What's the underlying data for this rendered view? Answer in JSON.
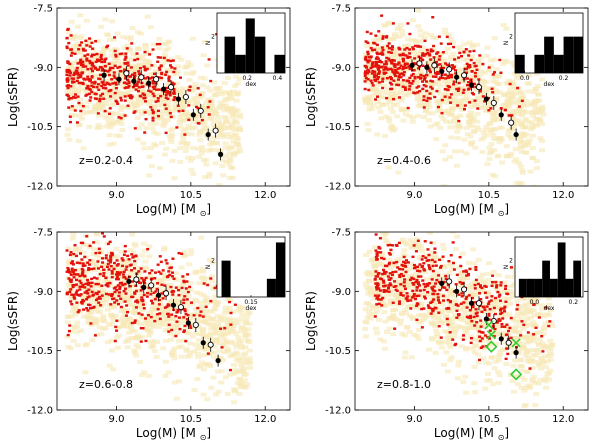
{
  "figure": {
    "xlabel": "Log(M) [M",
    "xlabel_sub": "⊙",
    "xlabel_close": "]",
    "ylabel": "Log(sSFR)",
    "inset_xlabel": "dex",
    "inset_ylabel": "N"
  },
  "colors": {
    "background_cloud": "#f7e7b4",
    "red_points": "#e3120b",
    "filled_markers": "#000000",
    "open_markers": "#000000",
    "green_markers": "#33cc33",
    "inset_bars": "#000000"
  },
  "chart_data": [
    {
      "type": "scatter",
      "panel": "top-left",
      "z_label": "z=0.2-0.4",
      "xlim": [
        7.8,
        12.5
      ],
      "ylim": [
        -12.0,
        -7.5
      ],
      "xticks": [
        "9.0",
        "10.5",
        "12.0"
      ],
      "yticks": [
        "-7.5",
        "-9.0",
        "-10.5",
        "-12.0"
      ],
      "red_cloud": {
        "x_range": [
          8.0,
          10.2
        ],
        "center": -9.2,
        "spread": 0.45,
        "tilt": -0.25
      },
      "bg_cloud": {
        "x_range": [
          8.0,
          11.5
        ],
        "center": -9.3,
        "spread": 0.7,
        "tilt": -0.55
      },
      "filled_points": [
        [
          8.75,
          -9.2
        ],
        [
          9.05,
          -9.3
        ],
        [
          9.35,
          -9.35
        ],
        [
          9.65,
          -9.4
        ],
        [
          9.95,
          -9.55
        ],
        [
          10.25,
          -9.8
        ],
        [
          10.55,
          -10.2
        ],
        [
          10.85,
          -10.7
        ],
        [
          11.1,
          -11.2
        ]
      ],
      "open_points": [
        [
          9.2,
          -9.15
        ],
        [
          9.5,
          -9.25
        ],
        [
          9.8,
          -9.3
        ],
        [
          10.1,
          -9.5
        ],
        [
          10.4,
          -9.75
        ],
        [
          10.7,
          -10.1
        ],
        [
          11.0,
          -10.6
        ]
      ],
      "green_diamonds": [],
      "green_crosses": [],
      "inset": {
        "xticks": [
          "0.2",
          "0.4"
        ],
        "xrange": [
          0.0,
          0.45
        ],
        "yticks": [
          "2"
        ],
        "bars": [
          {
            "x0": 0.05,
            "x1": 0.12,
            "h": 2
          },
          {
            "x0": 0.12,
            "x1": 0.19,
            "h": 1
          },
          {
            "x0": 0.19,
            "x1": 0.25,
            "h": 3
          },
          {
            "x0": 0.25,
            "x1": 0.32,
            "h": 2
          },
          {
            "x0": 0.32,
            "x1": 0.38,
            "h": 0
          },
          {
            "x0": 0.38,
            "x1": 0.45,
            "h": 1
          }
        ]
      }
    },
    {
      "type": "scatter",
      "panel": "top-right",
      "z_label": "z=0.4-0.6",
      "xlim": [
        7.8,
        12.5
      ],
      "ylim": [
        -12.0,
        -7.5
      ],
      "xticks": [
        "9.0",
        "10.5",
        "12.0"
      ],
      "yticks": [
        "-7.5",
        "-9.0",
        "-10.5",
        "-12.0"
      ],
      "red_cloud": {
        "x_range": [
          8.0,
          10.3
        ],
        "center": -9.0,
        "spread": 0.4,
        "tilt": -0.25
      },
      "bg_cloud": {
        "x_range": [
          8.0,
          11.6
        ],
        "center": -9.2,
        "spread": 0.7,
        "tilt": -0.55
      },
      "filled_points": [
        [
          8.95,
          -8.95
        ],
        [
          9.25,
          -9.0
        ],
        [
          9.55,
          -9.1
        ],
        [
          9.85,
          -9.25
        ],
        [
          10.15,
          -9.45
        ],
        [
          10.45,
          -9.8
        ],
        [
          10.75,
          -10.2
        ],
        [
          11.05,
          -10.7
        ]
      ],
      "open_points": [
        [
          9.1,
          -8.9
        ],
        [
          9.4,
          -8.95
        ],
        [
          9.7,
          -9.05
        ],
        [
          10.0,
          -9.2
        ],
        [
          10.3,
          -9.5
        ],
        [
          10.6,
          -9.9
        ],
        [
          10.95,
          -10.4
        ]
      ],
      "green_diamonds": [],
      "green_crosses": [],
      "inset": {
        "xticks": [
          "0.0",
          "0.2"
        ],
        "xrange": [
          -0.05,
          0.3
        ],
        "yticks": [
          "2"
        ],
        "bars": [
          {
            "x0": -0.05,
            "x1": 0.0,
            "h": 1
          },
          {
            "x0": 0.0,
            "x1": 0.05,
            "h": 0
          },
          {
            "x0": 0.05,
            "x1": 0.1,
            "h": 1
          },
          {
            "x0": 0.1,
            "x1": 0.15,
            "h": 2
          },
          {
            "x0": 0.15,
            "x1": 0.2,
            "h": 1
          },
          {
            "x0": 0.2,
            "x1": 0.25,
            "h": 2
          },
          {
            "x0": 0.25,
            "x1": 0.3,
            "h": 2
          }
        ]
      }
    },
    {
      "type": "scatter",
      "panel": "bottom-left",
      "z_label": "z=0.6-0.8",
      "xlim": [
        7.8,
        12.5
      ],
      "ylim": [
        -12.0,
        -7.5
      ],
      "xticks": [
        "9.0",
        "10.5",
        "12.0"
      ],
      "yticks": [
        "-7.5",
        "-9.0",
        "-10.5",
        "-12.0"
      ],
      "red_cloud": {
        "x_range": [
          8.0,
          10.5
        ],
        "center": -8.7,
        "spread": 0.5,
        "tilt": -0.35
      },
      "bg_cloud": {
        "x_range": [
          8.0,
          11.7
        ],
        "center": -9.0,
        "spread": 0.75,
        "tilt": -0.6
      },
      "filled_points": [
        [
          9.25,
          -8.75
        ],
        [
          9.55,
          -8.9
        ],
        [
          9.85,
          -9.1
        ],
        [
          10.15,
          -9.35
        ],
        [
          10.45,
          -9.8
        ],
        [
          10.75,
          -10.3
        ],
        [
          11.05,
          -10.75
        ]
      ],
      "open_points": [
        [
          9.4,
          -8.7
        ],
        [
          9.7,
          -8.85
        ],
        [
          10.0,
          -9.05
        ],
        [
          10.3,
          -9.4
        ],
        [
          10.6,
          -9.85
        ],
        [
          10.9,
          -10.35
        ]
      ],
      "green_diamonds": [],
      "green_crosses": [],
      "inset": {
        "xticks": [
          "0.15"
        ],
        "xrange": [
          0.0,
          0.3
        ],
        "yticks": [
          "2"
        ],
        "bars": [
          {
            "x0": 0.02,
            "x1": 0.06,
            "h": 2
          },
          {
            "x0": 0.06,
            "x1": 0.1,
            "h": 0
          },
          {
            "x0": 0.1,
            "x1": 0.14,
            "h": 0
          },
          {
            "x0": 0.14,
            "x1": 0.18,
            "h": 0
          },
          {
            "x0": 0.18,
            "x1": 0.22,
            "h": 0
          },
          {
            "x0": 0.22,
            "x1": 0.26,
            "h": 1
          },
          {
            "x0": 0.26,
            "x1": 0.3,
            "h": 3
          }
        ]
      }
    },
    {
      "type": "scatter",
      "panel": "bottom-right",
      "z_label": "z=0.8-1.0",
      "xlim": [
        7.8,
        12.5
      ],
      "ylim": [
        -12.0,
        -7.5
      ],
      "xticks": [
        "9.0",
        "10.5",
        "12.0"
      ],
      "yticks": [
        "-7.5",
        "-9.0",
        "-10.5",
        "-12.0"
      ],
      "red_cloud": {
        "x_range": [
          8.2,
          10.9
        ],
        "center": -8.6,
        "spread": 0.5,
        "tilt": -0.5
      },
      "bg_cloud": {
        "x_range": [
          8.0,
          11.8
        ],
        "center": -8.9,
        "spread": 0.75,
        "tilt": -0.6
      },
      "filled_points": [
        [
          9.55,
          -8.8
        ],
        [
          9.85,
          -9.0
        ],
        [
          10.15,
          -9.3
        ],
        [
          10.45,
          -9.7
        ],
        [
          10.75,
          -10.2
        ],
        [
          11.05,
          -10.55
        ]
      ],
      "open_points": [
        [
          9.7,
          -8.75
        ],
        [
          10.0,
          -8.95
        ],
        [
          10.3,
          -9.3
        ],
        [
          10.6,
          -9.75
        ],
        [
          10.9,
          -10.3
        ]
      ],
      "green_diamonds": [
        [
          10.55,
          -10.4
        ],
        [
          11.05,
          -11.1
        ]
      ],
      "green_crosses": [
        [
          10.5,
          -9.85
        ],
        [
          10.55,
          -10.1
        ],
        [
          11.05,
          -10.3
        ]
      ],
      "inset": {
        "xticks": [
          "0.0",
          "0.2"
        ],
        "xrange": [
          -0.1,
          0.25
        ],
        "yticks": [
          "2"
        ],
        "bars": [
          {
            "x0": -0.08,
            "x1": -0.04,
            "h": 1
          },
          {
            "x0": -0.04,
            "x1": 0.0,
            "h": 1
          },
          {
            "x0": 0.0,
            "x1": 0.04,
            "h": 1
          },
          {
            "x0": 0.04,
            "x1": 0.08,
            "h": 2
          },
          {
            "x0": 0.08,
            "x1": 0.12,
            "h": 1
          },
          {
            "x0": 0.12,
            "x1": 0.16,
            "h": 3
          },
          {
            "x0": 0.16,
            "x1": 0.2,
            "h": 1
          },
          {
            "x0": 0.2,
            "x1": 0.24,
            "h": 2
          }
        ]
      }
    }
  ]
}
